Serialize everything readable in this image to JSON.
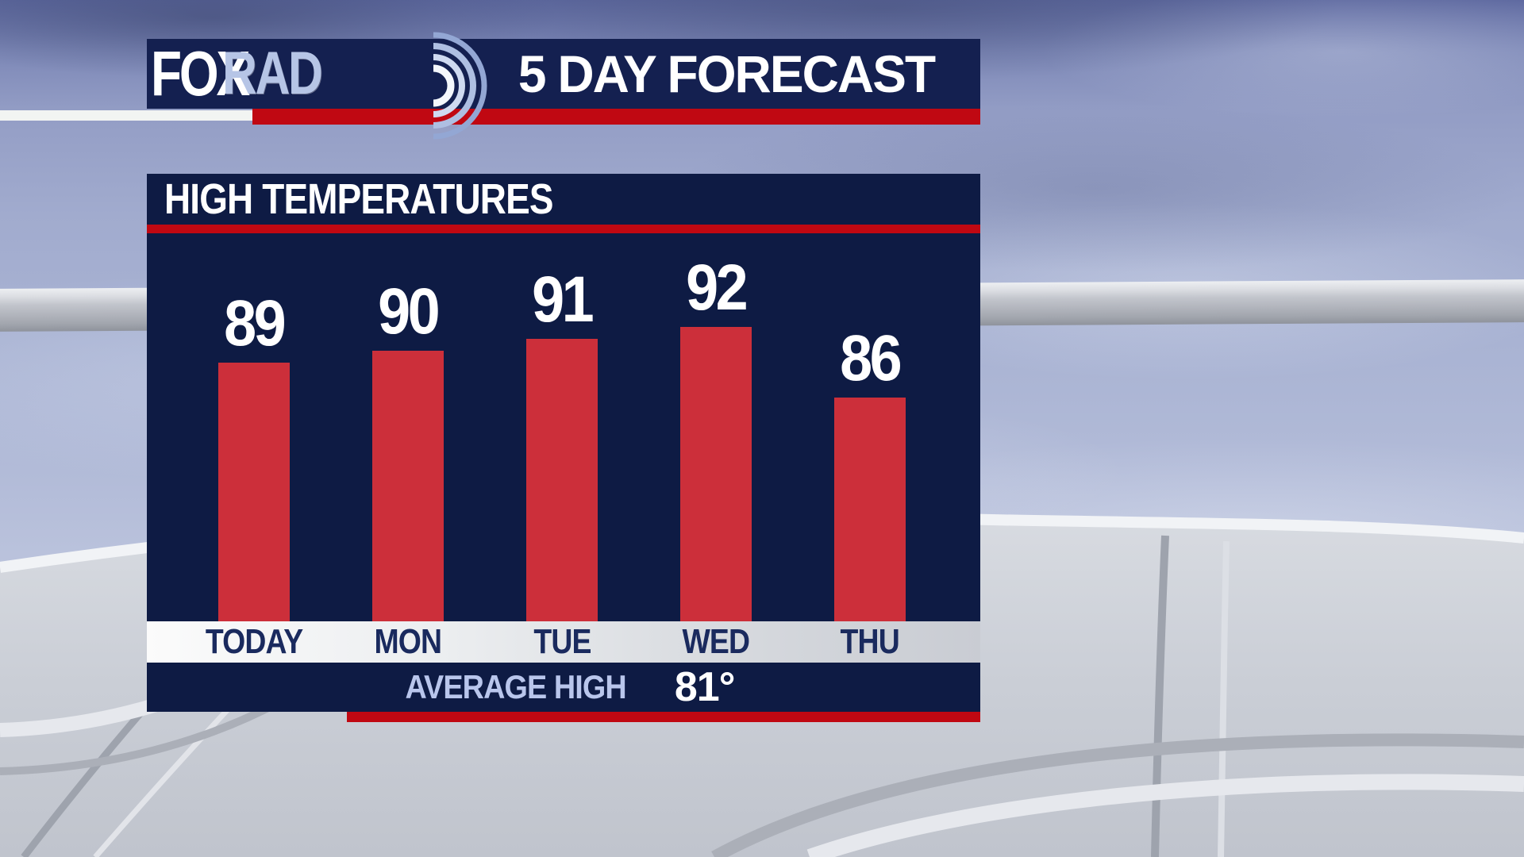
{
  "header": {
    "logo": {
      "fox": "FOX",
      "rad": "RAD"
    },
    "title": "5 DAY FORECAST"
  },
  "panel": {
    "title": "HIGH TEMPERATURES",
    "footer": {
      "label": "AVERAGE HIGH",
      "value": "81°"
    }
  },
  "chart_data": {
    "type": "bar",
    "title": "HIGH TEMPERATURES",
    "categories": [
      "TODAY",
      "MON",
      "TUE",
      "WED",
      "THU"
    ],
    "values": [
      89,
      90,
      91,
      92,
      86
    ],
    "value_labels_shown": true,
    "annotations": [
      {
        "label": "AVERAGE HIGH",
        "value": "81°"
      }
    ],
    "bar_color": "#cc2f3a",
    "panel_background": "#0e1b44",
    "grid": false,
    "legend": "none",
    "ylim": [
      67,
      100
    ]
  },
  "colors": {
    "navy_header": "#142050",
    "navy_panel": "#0e1b44",
    "red_accent": "#c00812",
    "bar_red": "#cc2f3a",
    "day_label_text": "#1a2a5e",
    "avg_label_text": "#b9c6ec",
    "logo_rad_text": "#b6c5e6"
  }
}
